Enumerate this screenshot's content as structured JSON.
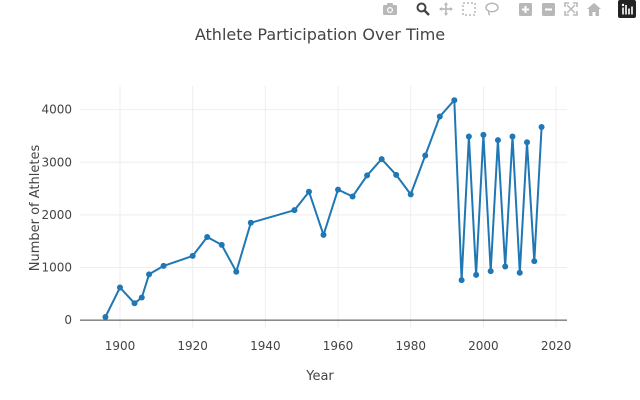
{
  "modebar": {
    "buttons": [
      "camera-icon",
      "zoom-icon",
      "pan-icon",
      "box-select-icon",
      "lasso-select-icon",
      "zoom-in-icon",
      "zoom-out-icon",
      "autoscale-icon",
      "reset-axes-icon",
      "plotly-logo-icon"
    ]
  },
  "colors": {
    "line": "#1f77b4",
    "grid": "#eeeeee",
    "text": "#444444",
    "icons": "#b8b8b8"
  },
  "chart_data": {
    "type": "line",
    "title": "Athlete Participation Over Time",
    "xlabel": "Year",
    "ylabel": "Number of Athletes",
    "xlim": [
      1889,
      2023
    ],
    "ylim": [
      -150,
      4450
    ],
    "xticks": [
      1900,
      1920,
      1940,
      1960,
      1980,
      2000,
      2020
    ],
    "yticks": [
      0,
      1000,
      2000,
      3000,
      4000
    ],
    "grid": true,
    "markers": true,
    "series": [
      {
        "x": [
          1896,
          1900,
          1904,
          1906,
          1908,
          1912,
          1920,
          1924,
          1928,
          1932,
          1936,
          1948,
          1952,
          1956,
          1960,
          1964,
          1968,
          1972,
          1976,
          1980,
          1984,
          1988,
          1992,
          1994,
          1996,
          1998,
          2000,
          2002,
          2004,
          2006,
          2008,
          2010,
          2012,
          2014,
          2016
        ],
        "y": [
          60,
          620,
          320,
          430,
          870,
          1030,
          1220,
          1580,
          1430,
          920,
          1850,
          2090,
          2440,
          1620,
          2480,
          2350,
          2750,
          3060,
          2760,
          2390,
          3130,
          3870,
          4180,
          760,
          3490,
          860,
          3520,
          930,
          3420,
          1020,
          3490,
          900,
          3380,
          1120,
          3670
        ]
      }
    ]
  }
}
